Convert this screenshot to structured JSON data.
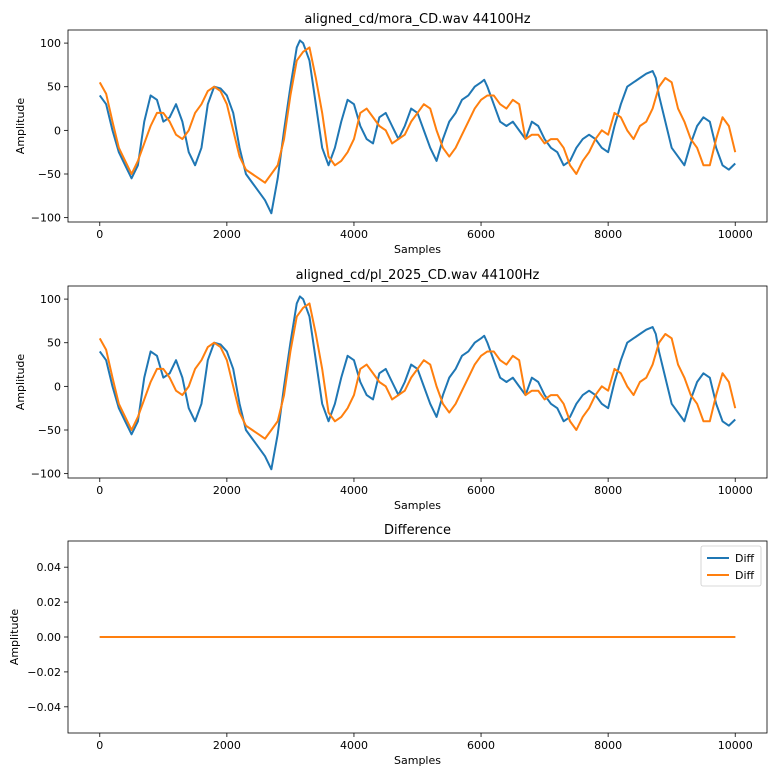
{
  "chart_data": [
    {
      "type": "line",
      "title": "aligned_cd/mora_CD.wav 44100Hz",
      "xlabel": "Samples",
      "ylabel": "Amplitude",
      "xlim": [
        -500,
        10500
      ],
      "ylim": [
        -105,
        115
      ],
      "xticks": [
        0,
        2000,
        4000,
        6000,
        8000,
        10000
      ],
      "yticks": [
        100,
        50,
        0,
        -50,
        -100
      ],
      "series": [
        {
          "color": "#1f77b4",
          "x": [
            0,
            100,
            200,
            300,
            400,
            500,
            600,
            700,
            800,
            900,
            1000,
            1100,
            1200,
            1300,
            1400,
            1500,
            1600,
            1700,
            1800,
            1900,
            2000,
            2100,
            2200,
            2300,
            2400,
            2500,
            2600,
            2700,
            2800,
            2900,
            3000,
            3100,
            3150,
            3200,
            3300,
            3400,
            3500,
            3600,
            3700,
            3800,
            3900,
            4000,
            4100,
            4200,
            4300,
            4400,
            4500,
            4600,
            4700,
            4800,
            4900,
            5000,
            5100,
            5200,
            5300,
            5400,
            5500,
            5600,
            5700,
            5800,
            5900,
            6000,
            6050,
            6100,
            6200,
            6300,
            6400,
            6500,
            6600,
            6700,
            6800,
            6900,
            7000,
            7100,
            7200,
            7300,
            7400,
            7500,
            7600,
            7700,
            7800,
            7900,
            8000,
            8100,
            8200,
            8300,
            8400,
            8500,
            8600,
            8700,
            8750,
            8800,
            8900,
            9000,
            9100,
            9200,
            9300,
            9400,
            9500,
            9600,
            9700,
            9800,
            9900,
            10000
          ],
          "y": [
            40,
            30,
            0,
            -25,
            -40,
            -55,
            -40,
            10,
            40,
            35,
            10,
            15,
            30,
            10,
            -25,
            -40,
            -20,
            30,
            50,
            48,
            40,
            20,
            -20,
            -50,
            -60,
            -70,
            -80,
            -95,
            -55,
            0,
            50,
            95,
            103,
            100,
            80,
            30,
            -20,
            -40,
            -20,
            10,
            35,
            30,
            5,
            -10,
            -15,
            15,
            20,
            5,
            -10,
            5,
            25,
            20,
            0,
            -20,
            -35,
            -10,
            10,
            20,
            35,
            40,
            50,
            55,
            58,
            50,
            30,
            10,
            5,
            10,
            0,
            -10,
            10,
            5,
            -10,
            -20,
            -25,
            -40,
            -35,
            -20,
            -10,
            -5,
            -10,
            -20,
            -25,
            5,
            30,
            50,
            55,
            60,
            65,
            68,
            60,
            40,
            10,
            -20,
            -30,
            -40,
            -15,
            5,
            15,
            10,
            -20,
            -40,
            -45,
            -38
          ]
        },
        {
          "color": "#ff7f0e",
          "x": [
            0,
            100,
            200,
            300,
            400,
            500,
            600,
            700,
            800,
            900,
            1000,
            1100,
            1200,
            1300,
            1400,
            1500,
            1600,
            1700,
            1800,
            1900,
            2000,
            2100,
            2200,
            2300,
            2400,
            2500,
            2600,
            2700,
            2800,
            2900,
            3000,
            3100,
            3200,
            3300,
            3400,
            3500,
            3600,
            3700,
            3800,
            3900,
            4000,
            4100,
            4200,
            4300,
            4400,
            4500,
            4600,
            4700,
            4800,
            4900,
            5000,
            5100,
            5200,
            5300,
            5400,
            5500,
            5600,
            5700,
            5800,
            5900,
            6000,
            6100,
            6200,
            6300,
            6400,
            6500,
            6600,
            6700,
            6800,
            6900,
            7000,
            7100,
            7200,
            7300,
            7400,
            7500,
            7600,
            7700,
            7800,
            7900,
            8000,
            8100,
            8200,
            8300,
            8400,
            8500,
            8600,
            8700,
            8800,
            8900,
            9000,
            9100,
            9200,
            9300,
            9400,
            9500,
            9600,
            9700,
            9800,
            9900,
            10000
          ],
          "y": [
            55,
            42,
            10,
            -20,
            -35,
            -50,
            -35,
            -15,
            5,
            20,
            20,
            10,
            -5,
            -10,
            0,
            20,
            30,
            45,
            50,
            45,
            30,
            0,
            -30,
            -45,
            -50,
            -55,
            -60,
            -50,
            -40,
            -10,
            40,
            80,
            90,
            95,
            60,
            20,
            -30,
            -40,
            -35,
            -25,
            -10,
            20,
            25,
            15,
            5,
            0,
            -15,
            -10,
            -5,
            10,
            20,
            30,
            25,
            0,
            -20,
            -30,
            -20,
            -5,
            10,
            25,
            35,
            40,
            40,
            30,
            25,
            35,
            30,
            -10,
            -5,
            -5,
            -15,
            -10,
            -10,
            -20,
            -40,
            -50,
            -35,
            -25,
            -10,
            0,
            -5,
            20,
            15,
            0,
            -10,
            5,
            10,
            25,
            50,
            60,
            55,
            25,
            10,
            -10,
            -20,
            -40,
            -40,
            -10,
            15,
            5,
            -25
          ]
        }
      ]
    },
    {
      "type": "line",
      "title": "aligned_cd/pl_2025_CD.wav 44100Hz",
      "xlabel": "Samples",
      "ylabel": "Amplitude",
      "xlim": [
        -500,
        10500
      ],
      "ylim": [
        -105,
        115
      ],
      "xticks": [
        0,
        2000,
        4000,
        6000,
        8000,
        10000
      ],
      "yticks": [
        100,
        50,
        0,
        -50,
        -100
      ],
      "series": [
        {
          "color": "#1f77b4",
          "x": [
            0,
            100,
            200,
            300,
            400,
            500,
            600,
            700,
            800,
            900,
            1000,
            1100,
            1200,
            1300,
            1400,
            1500,
            1600,
            1700,
            1800,
            1900,
            2000,
            2100,
            2200,
            2300,
            2400,
            2500,
            2600,
            2700,
            2800,
            2900,
            3000,
            3100,
            3150,
            3200,
            3300,
            3400,
            3500,
            3600,
            3700,
            3800,
            3900,
            4000,
            4100,
            4200,
            4300,
            4400,
            4500,
            4600,
            4700,
            4800,
            4900,
            5000,
            5100,
            5200,
            5300,
            5400,
            5500,
            5600,
            5700,
            5800,
            5900,
            6000,
            6050,
            6100,
            6200,
            6300,
            6400,
            6500,
            6600,
            6700,
            6800,
            6900,
            7000,
            7100,
            7200,
            7300,
            7400,
            7500,
            7600,
            7700,
            7800,
            7900,
            8000,
            8100,
            8200,
            8300,
            8400,
            8500,
            8600,
            8700,
            8750,
            8800,
            8900,
            9000,
            9100,
            9200,
            9300,
            9400,
            9500,
            9600,
            9700,
            9800,
            9900,
            10000
          ],
          "y": [
            40,
            30,
            0,
            -25,
            -40,
            -55,
            -40,
            10,
            40,
            35,
            10,
            15,
            30,
            10,
            -25,
            -40,
            -20,
            30,
            50,
            48,
            40,
            20,
            -20,
            -50,
            -60,
            -70,
            -80,
            -95,
            -55,
            0,
            50,
            95,
            103,
            100,
            80,
            30,
            -20,
            -40,
            -20,
            10,
            35,
            30,
            5,
            -10,
            -15,
            15,
            20,
            5,
            -10,
            5,
            25,
            20,
            0,
            -20,
            -35,
            -10,
            10,
            20,
            35,
            40,
            50,
            55,
            58,
            50,
            30,
            10,
            5,
            10,
            0,
            -10,
            10,
            5,
            -10,
            -20,
            -25,
            -40,
            -35,
            -20,
            -10,
            -5,
            -10,
            -20,
            -25,
            5,
            30,
            50,
            55,
            60,
            65,
            68,
            60,
            40,
            10,
            -20,
            -30,
            -40,
            -15,
            5,
            15,
            10,
            -20,
            -40,
            -45,
            -38
          ]
        },
        {
          "color": "#ff7f0e",
          "x": [
            0,
            100,
            200,
            300,
            400,
            500,
            600,
            700,
            800,
            900,
            1000,
            1100,
            1200,
            1300,
            1400,
            1500,
            1600,
            1700,
            1800,
            1900,
            2000,
            2100,
            2200,
            2300,
            2400,
            2500,
            2600,
            2700,
            2800,
            2900,
            3000,
            3100,
            3200,
            3300,
            3400,
            3500,
            3600,
            3700,
            3800,
            3900,
            4000,
            4100,
            4200,
            4300,
            4400,
            4500,
            4600,
            4700,
            4800,
            4900,
            5000,
            5100,
            5200,
            5300,
            5400,
            5500,
            5600,
            5700,
            5800,
            5900,
            6000,
            6100,
            6200,
            6300,
            6400,
            6500,
            6600,
            6700,
            6800,
            6900,
            7000,
            7100,
            7200,
            7300,
            7400,
            7500,
            7600,
            7700,
            7800,
            7900,
            8000,
            8100,
            8200,
            8300,
            8400,
            8500,
            8600,
            8700,
            8800,
            8900,
            9000,
            9100,
            9200,
            9300,
            9400,
            9500,
            9600,
            9700,
            9800,
            9900,
            10000
          ],
          "y": [
            55,
            42,
            10,
            -20,
            -35,
            -50,
            -35,
            -15,
            5,
            20,
            20,
            10,
            -5,
            -10,
            0,
            20,
            30,
            45,
            50,
            45,
            30,
            0,
            -30,
            -45,
            -50,
            -55,
            -60,
            -50,
            -40,
            -10,
            40,
            80,
            90,
            95,
            60,
            20,
            -30,
            -40,
            -35,
            -25,
            -10,
            20,
            25,
            15,
            5,
            0,
            -15,
            -10,
            -5,
            10,
            20,
            30,
            25,
            0,
            -20,
            -30,
            -20,
            -5,
            10,
            25,
            35,
            40,
            40,
            30,
            25,
            35,
            30,
            -10,
            -5,
            -5,
            -15,
            -10,
            -10,
            -20,
            -40,
            -50,
            -35,
            -25,
            -10,
            0,
            -5,
            20,
            15,
            0,
            -10,
            5,
            10,
            25,
            50,
            60,
            55,
            25,
            10,
            -10,
            -20,
            -40,
            -40,
            -10,
            15,
            5,
            -25
          ]
        }
      ]
    },
    {
      "type": "line",
      "title": "Difference",
      "xlabel": "Samples",
      "ylabel": "Amplitude",
      "xlim": [
        -500,
        10500
      ],
      "ylim": [
        -0.055,
        0.055
      ],
      "xticks": [
        0,
        2000,
        4000,
        6000,
        8000,
        10000
      ],
      "yticks": [
        0.04,
        0.02,
        0.0,
        -0.02,
        -0.04
      ],
      "legend": "top-right",
      "series": [
        {
          "name": "Diff",
          "color": "#1f77b4",
          "x": [
            0,
            10000
          ],
          "y": [
            0,
            0
          ]
        },
        {
          "name": "Diff",
          "color": "#ff7f0e",
          "x": [
            0,
            10000
          ],
          "y": [
            0,
            0
          ]
        }
      ]
    }
  ]
}
